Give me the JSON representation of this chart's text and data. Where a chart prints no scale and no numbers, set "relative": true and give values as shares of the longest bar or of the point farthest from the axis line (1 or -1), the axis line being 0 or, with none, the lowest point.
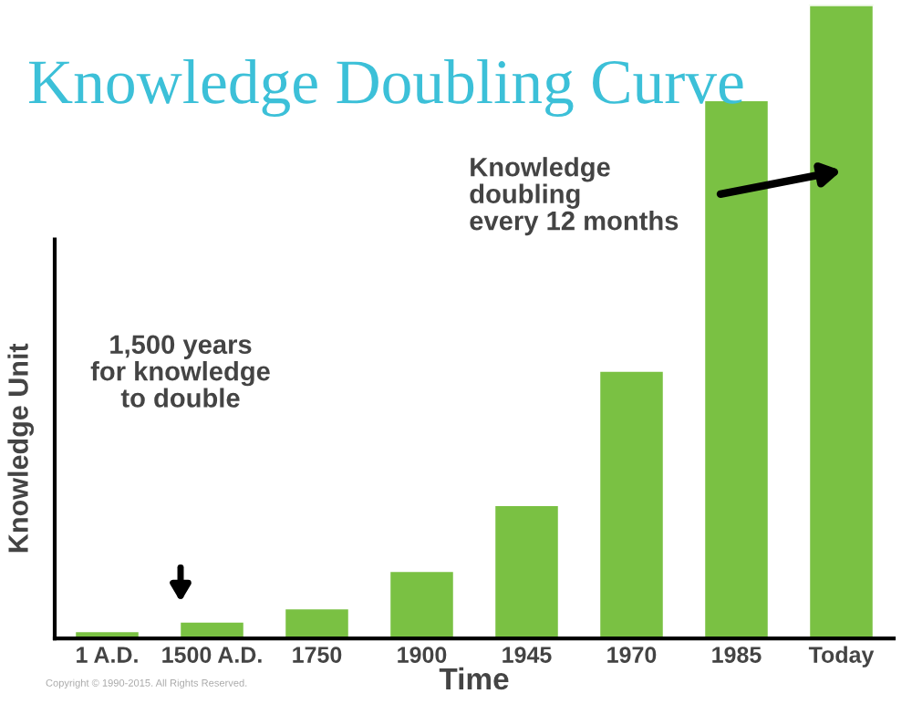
{
  "chart_data": {
    "type": "bar",
    "title": "Knowledge Doubling Curve",
    "xlabel": "Time",
    "ylabel": "Knowledge Unit",
    "relative": true,
    "categories": [
      "1 A.D.",
      "1500 A.D.",
      "1750",
      "1900",
      "1945",
      "1970",
      "1985",
      "Today"
    ],
    "values": [
      0.012,
      0.027,
      0.048,
      0.107,
      0.211,
      0.423,
      0.85,
      1.0
    ],
    "color": "#7ac143",
    "grid": false,
    "legend": false,
    "annotations": [
      "1,500 years\nfor knowledge\nto double",
      "Knowledge\ndoubling\nevery 12 months",
      "Copyright © 1990-2015. All Rights Reserved."
    ]
  }
}
